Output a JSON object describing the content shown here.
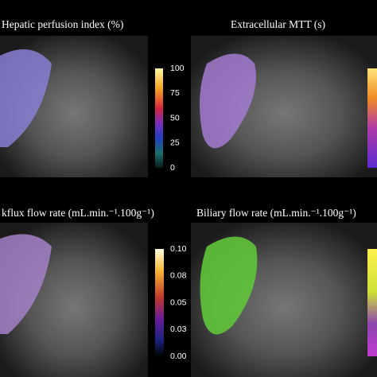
{
  "panels": [
    {
      "title": "Hepatic perfusion index (%)",
      "colorbar_ticks": [
        100,
        75,
        50,
        25,
        0
      ]
    },
    {
      "title": "Extracellular MTT (s)",
      "colorbar_ticks": []
    },
    {
      "title": "kflux flow rate (mL.min.⁻¹.100g⁻¹)",
      "colorbar_ticks": [
        {
          "value": 0.1,
          "label": "0.10"
        },
        {
          "value": 0.08,
          "label": "0.08"
        },
        {
          "value": 0.05,
          "label": "0.05"
        },
        {
          "value": 0.03,
          "label": "0.03"
        },
        {
          "value": 0,
          "label": "0.00"
        }
      ]
    },
    {
      "title": "Biliary flow rate (mL.min.⁻¹.100g⁻¹)",
      "colorbar_ticks": []
    }
  ]
}
